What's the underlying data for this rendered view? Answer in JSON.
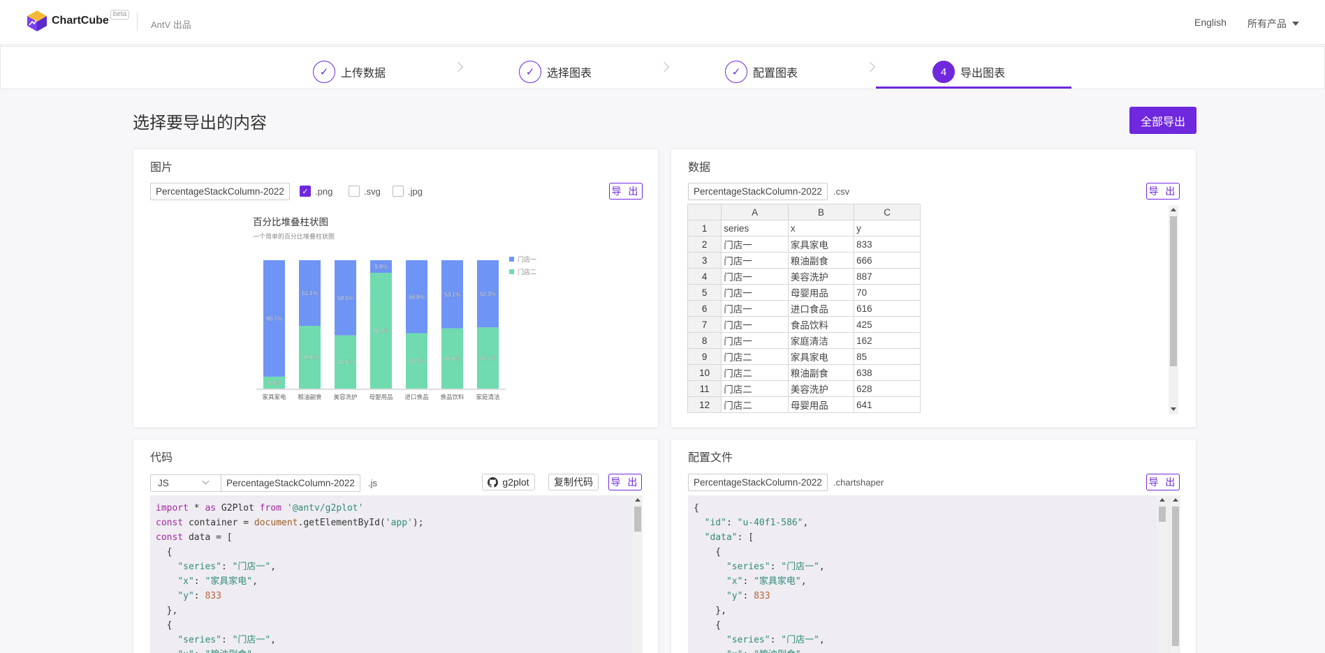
{
  "header": {
    "brand": "ChartCube",
    "badge": "beta",
    "byline": "AntV 出品",
    "lang": "English",
    "products": "所有产品"
  },
  "steps": [
    {
      "label": "上传数据",
      "done": true
    },
    {
      "label": "选择图表",
      "done": true
    },
    {
      "label": "配置图表",
      "done": true
    },
    {
      "label": "导出图表",
      "number": "4",
      "active": true
    }
  ],
  "page": {
    "title": "选择要导出的内容",
    "export_all": "全部导出"
  },
  "image_card": {
    "title": "图片",
    "filename": "PercentageStackColumn-2022",
    "formats": [
      {
        "label": ".png",
        "checked": true
      },
      {
        "label": ".svg",
        "checked": false
      },
      {
        "label": ".jpg",
        "checked": false
      }
    ],
    "export": "导 出"
  },
  "chart_data": {
    "type": "bar",
    "stacked": "percent",
    "title": "百分比堆叠柱状图",
    "subtitle": "一个简单的百分比堆叠柱状图",
    "categories": [
      "家具家电",
      "粮油副食",
      "美容洗护",
      "母婴用品",
      "进口食品",
      "食品饮料",
      "家庭清洁"
    ],
    "series": [
      {
        "name": "门店一",
        "color": "#6e94f5",
        "values": [
          90.7,
          51.1,
          58.5,
          9.8,
          56.8,
          53.1,
          52.3
        ],
        "labels": [
          "90.7%",
          "51.1%",
          "58.5%",
          "9.8%",
          "56.8%",
          "53.1%",
          "52.3%"
        ]
      },
      {
        "name": "门店二",
        "color": "#6fdbae",
        "values": [
          9.3,
          48.9,
          41.5,
          90.2,
          43.2,
          46.9,
          47.7
        ],
        "labels": [
          "9.3%",
          "48.9%",
          "41.5%",
          "90.2%",
          "43.2%",
          "46.9%",
          "47.7%"
        ]
      }
    ],
    "legend": "right-top"
  },
  "data_card": {
    "title": "数据",
    "filename": "PercentageStackColumn-2022",
    "ext": ".csv",
    "export": "导 出",
    "columns": [
      "A",
      "B",
      "C"
    ],
    "rows": [
      [
        "1",
        "series",
        "x",
        "y"
      ],
      [
        "2",
        "门店一",
        "家具家电",
        "833"
      ],
      [
        "3",
        "门店一",
        "粮油副食",
        "666"
      ],
      [
        "4",
        "门店一",
        "美容洗护",
        "887"
      ],
      [
        "5",
        "门店一",
        "母婴用品",
        "70"
      ],
      [
        "6",
        "门店一",
        "进口食品",
        "616"
      ],
      [
        "7",
        "门店一",
        "食品饮料",
        "425"
      ],
      [
        "8",
        "门店一",
        "家庭清洁",
        "162"
      ],
      [
        "9",
        "门店二",
        "家具家电",
        "85"
      ],
      [
        "10",
        "门店二",
        "粮油副食",
        "638"
      ],
      [
        "11",
        "门店二",
        "美容洗护",
        "628"
      ],
      [
        "12",
        "门店二",
        "母婴用品",
        "641"
      ]
    ]
  },
  "code_card": {
    "title": "代码",
    "lang": "JS",
    "filename": "PercentageStackColumn-2022",
    "ext": ".js",
    "github": "g2plot",
    "copy": "复制代码",
    "export": "导 出"
  },
  "config_card": {
    "title": "配置文件",
    "filename": "PercentageStackColumn-2022",
    "ext": ".chartshaper",
    "export": "导 出"
  },
  "colors": {
    "accent": "#6f28de"
  }
}
